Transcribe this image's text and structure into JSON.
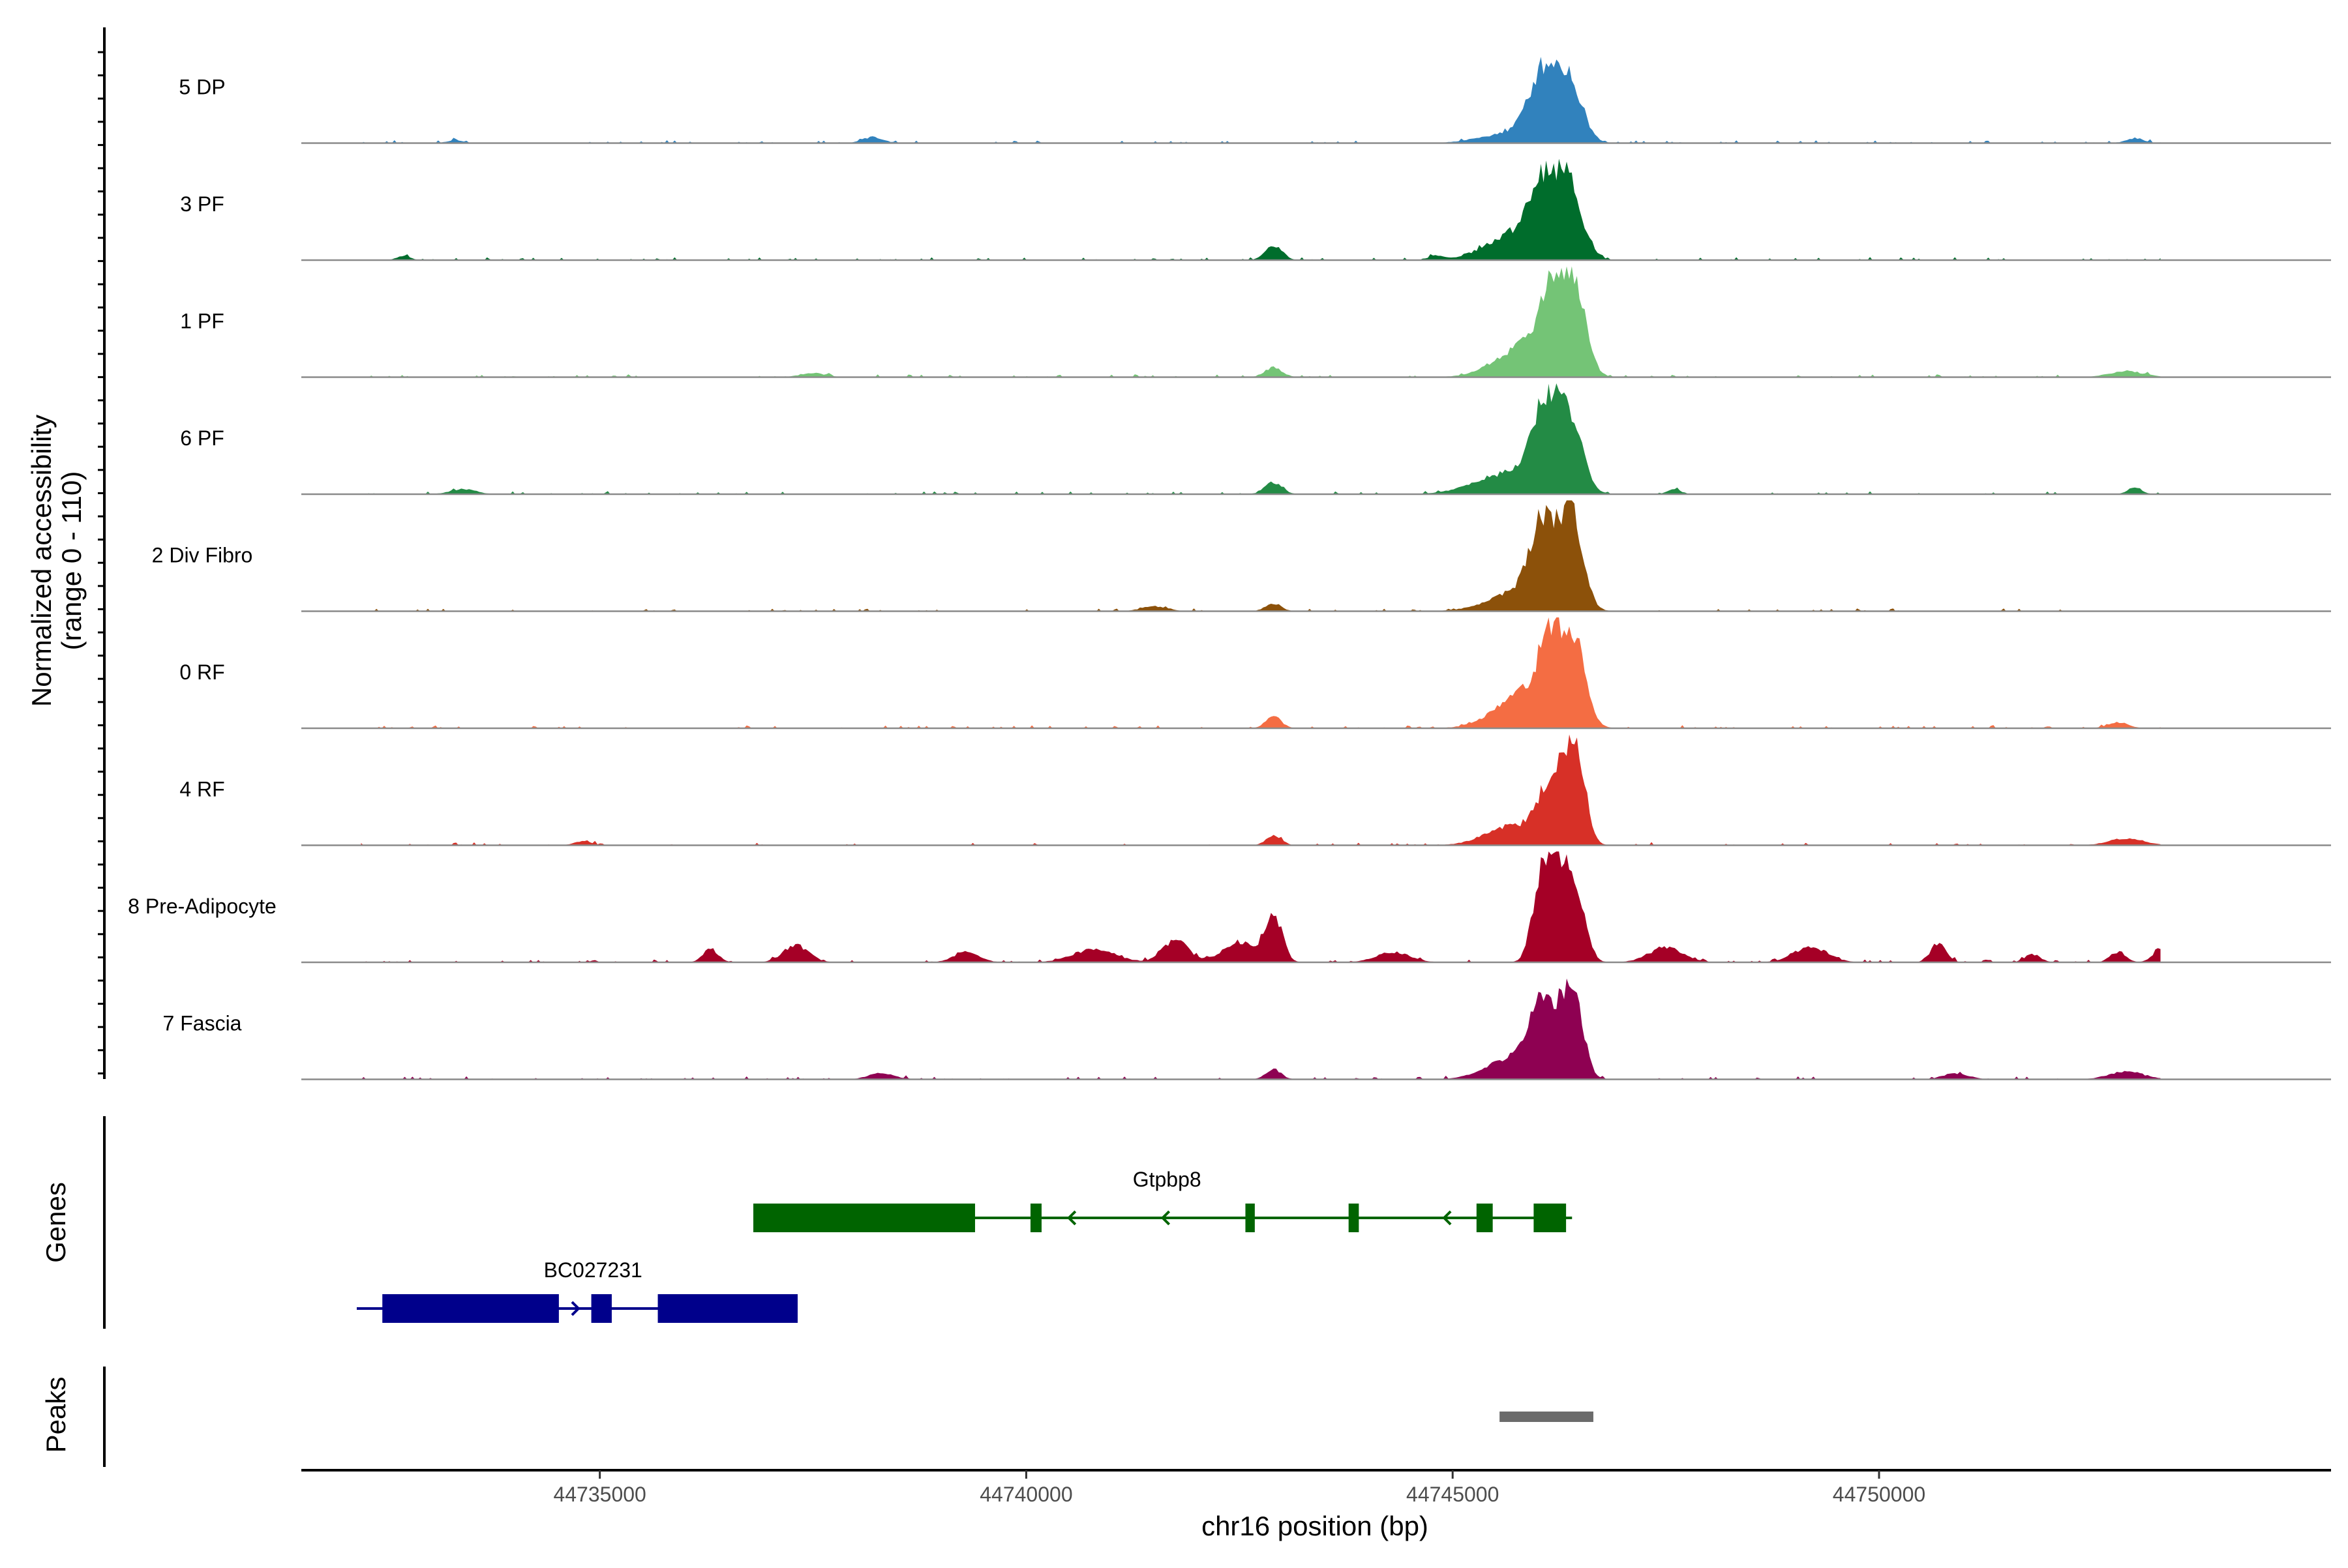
{
  "chart_data": {
    "type": "area",
    "chromosome": "chr16",
    "xlabel": "chr16 position (bp)",
    "ylabel_line1": "Normalized accessibility",
    "ylabel_line2": "(range 0 - 110)",
    "y_range": [
      0,
      110
    ],
    "xlim": [
      44731500,
      44755300
    ],
    "x_ticks": [
      44735000,
      44740000,
      44745000,
      44750000
    ],
    "x_tick_labels": [
      "44735000",
      "44740000",
      "44745000",
      "44750000"
    ],
    "genes_label": "Genes",
    "peaks_label": "Peaks",
    "series": [
      {
        "name": "5 DP",
        "color": "#3182bd",
        "peaks": [
          [
            44746070,
            67,
            170
          ],
          [
            44746380,
            54,
            150
          ],
          [
            44745700,
            10,
            350
          ],
          [
            44738200,
            6,
            120
          ],
          [
            44753000,
            5,
            100
          ],
          [
            44733300,
            3,
            90
          ]
        ]
      },
      {
        "name": "3 PF",
        "color": "#006d2c",
        "peaks": [
          [
            44746070,
            66,
            170
          ],
          [
            44746380,
            63,
            150
          ],
          [
            44745750,
            25,
            350
          ],
          [
            44742900,
            15,
            100
          ],
          [
            44744800,
            4,
            80
          ],
          [
            44732700,
            4,
            80
          ]
        ]
      },
      {
        "name": "1 PF",
        "color": "#74c476",
        "peaks": [
          [
            44746170,
            74,
            150
          ],
          [
            44746440,
            78,
            130
          ],
          [
            44745850,
            30,
            330
          ],
          [
            44742900,
            10,
            100
          ],
          [
            44752900,
            6,
            200
          ],
          [
            44737500,
            4,
            150
          ]
        ]
      },
      {
        "name": "6 PF",
        "color": "#238b45",
        "peaks": [
          [
            44746090,
            79,
            150
          ],
          [
            44746380,
            70,
            140
          ],
          [
            44745700,
            22,
            400
          ],
          [
            44742900,
            12,
            100
          ],
          [
            44753000,
            7,
            80
          ],
          [
            44733400,
            5,
            150
          ],
          [
            44747600,
            5,
            80
          ]
        ]
      },
      {
        "name": "2 Div Fibro",
        "color": "#8c510a",
        "peaks": [
          [
            44746070,
            81,
            150
          ],
          [
            44746400,
            92,
            130
          ],
          [
            44745800,
            20,
            350
          ],
          [
            44742900,
            8,
            90
          ],
          [
            44741500,
            5,
            150
          ]
        ]
      },
      {
        "name": "0 RF",
        "color": "#f46d43",
        "peaks": [
          [
            44746170,
            72,
            150
          ],
          [
            44746440,
            70,
            130
          ],
          [
            44745850,
            35,
            330
          ],
          [
            44742900,
            12,
            90
          ],
          [
            44752800,
            6,
            120
          ]
        ]
      },
      {
        "name": "4 RF",
        "color": "#d73027",
        "peaks": [
          [
            44746170,
            63,
            150
          ],
          [
            44746440,
            100,
            110
          ],
          [
            44745700,
            20,
            300
          ],
          [
            44742900,
            9,
            90
          ],
          [
            44752900,
            7,
            200
          ],
          [
            44734800,
            4,
            100
          ]
        ]
      },
      {
        "name": "8 Pre-Adipocyte",
        "color": "#a50026",
        "peaks": [
          [
            44746060,
            95,
            110
          ],
          [
            44746300,
            91,
            110
          ],
          [
            44746500,
            40,
            100
          ],
          [
            44742900,
            47,
            100
          ],
          [
            44742500,
            20,
            200
          ],
          [
            44741750,
            22,
            150
          ],
          [
            44737300,
            17,
            150
          ],
          [
            44736300,
            13,
            90
          ],
          [
            44747500,
            15,
            200
          ],
          [
            44749200,
            15,
            200
          ],
          [
            44750700,
            20,
            90
          ],
          [
            44753300,
            13,
            90
          ],
          [
            44752800,
            10,
            90
          ],
          [
            44751800,
            8,
            90
          ],
          [
            44740800,
            13,
            250
          ],
          [
            44744300,
            10,
            200
          ],
          [
            44739300,
            10,
            150
          ]
        ]
      },
      {
        "name": "7 Fascia",
        "color": "#8e0152",
        "peaks": [
          [
            44746070,
            63,
            150
          ],
          [
            44746400,
            88,
            120
          ],
          [
            44745800,
            25,
            330
          ],
          [
            44742900,
            10,
            90
          ],
          [
            44752900,
            8,
            200
          ],
          [
            44738300,
            6,
            150
          ],
          [
            44750900,
            6,
            150
          ]
        ]
      }
    ],
    "genes": [
      {
        "name": "Gtpbp8",
        "color": "#006400",
        "strand": "-",
        "start": 44736800,
        "end": 44746400,
        "exons": [
          [
            44736800,
            44739400
          ],
          [
            44740050,
            44740180
          ],
          [
            44742570,
            44742680
          ],
          [
            44743780,
            44743900
          ],
          [
            44745280,
            44745470
          ],
          [
            44745950,
            44746330
          ]
        ]
      },
      {
        "name": "BC027231",
        "color": "#00008b",
        "strand": "+",
        "start": 44732150,
        "end": 44737320,
        "exons": [
          [
            44732450,
            44734520
          ],
          [
            44734900,
            44735140
          ],
          [
            44735680,
            44737320
          ]
        ]
      }
    ],
    "peak_regions": [
      [
        44745550,
        44746650
      ]
    ]
  }
}
